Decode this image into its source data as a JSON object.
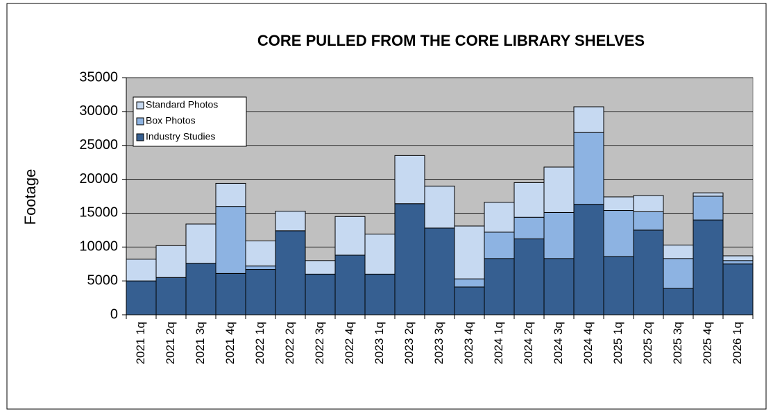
{
  "chart_data": {
    "type": "stacked_bar",
    "title": "CORE PULLED FROM THE CORE LIBRARY SHELVES",
    "y_label": "Footage",
    "categories": [
      "2021 1q",
      "2021 2q",
      "2021 3q",
      "2021 4q",
      "2022 1q",
      "2022 2q",
      "2022 3q",
      "2022 4q",
      "2023 1q",
      "2023 2q",
      "2023 3q",
      "2023 4q",
      "2024 1q",
      "2024 2q",
      "2024 3q",
      "2024 4q",
      "2025 1q",
      "2025 2q",
      "2025 3q",
      "2025 4q",
      "2026 1q"
    ],
    "series": [
      {
        "name": "Industry Studies",
        "color": "#365f91",
        "values": [
          5000,
          5500,
          7600,
          6100,
          6700,
          12400,
          6000,
          8800,
          6000,
          16400,
          12800,
          4100,
          8300,
          11200,
          8300,
          16300,
          8600,
          12500,
          3900,
          14000,
          7500
        ]
      },
      {
        "name": "Box Photos",
        "color": "#8db3e2",
        "values": [
          0,
          0,
          0,
          9900,
          500,
          0,
          0,
          0,
          0,
          0,
          0,
          1200,
          3900,
          3200,
          6800,
          10600,
          6800,
          2700,
          4400,
          3500,
          500
        ]
      },
      {
        "name": "Standard Photos",
        "color": "#c6d9f1",
        "values": [
          3200,
          4700,
          5800,
          3400,
          3700,
          2900,
          2000,
          5700,
          5900,
          7100,
          6200,
          7800,
          4400,
          5100,
          6700,
          3800,
          2000,
          2400,
          2000,
          500,
          700
        ]
      }
    ],
    "ylim": [
      0,
      35000
    ],
    "yticks": [
      0,
      5000,
      10000,
      15000,
      20000,
      25000,
      30000,
      35000
    ],
    "grid": true,
    "legend": "top-left",
    "plot_background": "#c0c0c0"
  }
}
